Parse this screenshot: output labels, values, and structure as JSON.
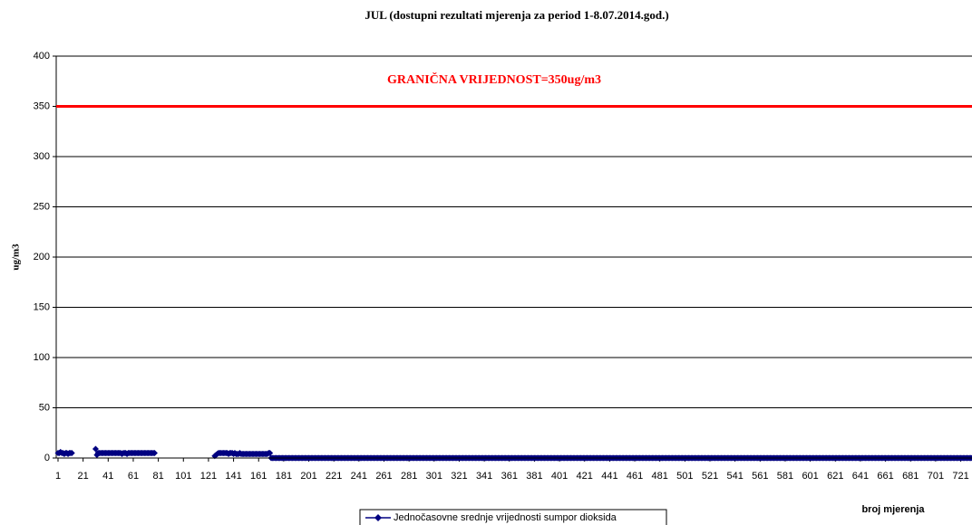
{
  "chart_data": {
    "type": "line",
    "title": "JUL (dostupni rezultati mjerenja za period 1-8.07.2014.god.)",
    "y_label": "ug/m3",
    "x_label": "broj mjerenja",
    "threshold": 350,
    "threshold_label": "GRANIČNA VRIJEDNOST=350ug/m3",
    "threshold_color": "#ff0000",
    "xlim": [
      1,
      730
    ],
    "xticks": [
      1,
      21,
      41,
      61,
      81,
      101,
      121,
      141,
      161,
      181,
      201,
      221,
      241,
      261,
      281,
      301,
      321,
      341,
      361,
      381,
      401,
      421,
      441,
      461,
      481,
      501,
      521,
      541,
      561,
      581,
      601,
      621,
      641,
      661,
      681,
      701,
      721
    ],
    "ylim": [
      0,
      400
    ],
    "yticks": [
      0,
      50,
      100,
      150,
      200,
      250,
      300,
      350,
      400
    ],
    "grid": true,
    "series": [
      {
        "name": "Jednočasovne srednje vrijednosti sumpor dioksida",
        "color": "#000080",
        "values": [
          5,
          5,
          6,
          5,
          5,
          4,
          5,
          5,
          4,
          5,
          5,
          5,
          null,
          null,
          null,
          null,
          null,
          null,
          null,
          null,
          null,
          null,
          null,
          null,
          null,
          null,
          null,
          null,
          null,
          null,
          9,
          3,
          5,
          5,
          5,
          5,
          5,
          5,
          5,
          5,
          5,
          5,
          5,
          5,
          5,
          5,
          5,
          5,
          5,
          5,
          5,
          4,
          5,
          5,
          5,
          4,
          5,
          5,
          5,
          5,
          5,
          5,
          5,
          5,
          5,
          5,
          5,
          5,
          5,
          5,
          5,
          5,
          5,
          5,
          5,
          5,
          5,
          5,
          null,
          null,
          null,
          null,
          null,
          null,
          null,
          null,
          null,
          null,
          null,
          null,
          null,
          null,
          null,
          null,
          null,
          null,
          null,
          null,
          null,
          null,
          null,
          null,
          null,
          null,
          null,
          null,
          null,
          null,
          null,
          null,
          null,
          null,
          null,
          null,
          null,
          null,
          null,
          null,
          null,
          null,
          null,
          null,
          null,
          null,
          null,
          2,
          3,
          4,
          5,
          5,
          5,
          5,
          5,
          5,
          5,
          5,
          4,
          5,
          5,
          5,
          4,
          5,
          4,
          4,
          4,
          5,
          4,
          4,
          4,
          4,
          4,
          4,
          4,
          4,
          4,
          4,
          4,
          4,
          4,
          4,
          4,
          4,
          4,
          4,
          4,
          4,
          4,
          4,
          5,
          5,
          0,
          0,
          0,
          0,
          0,
          0,
          0,
          0,
          0,
          0,
          0,
          0,
          0,
          0,
          0,
          0,
          0,
          0,
          0,
          0,
          0,
          0,
          0,
          0,
          0,
          0,
          0,
          0,
          0,
          0,
          0,
          0,
          0,
          0,
          0,
          0,
          0,
          0,
          0,
          0,
          0,
          0,
          0,
          0,
          0,
          0,
          0,
          0,
          0,
          0,
          0,
          0,
          0,
          0,
          0,
          0,
          0,
          0,
          0,
          0,
          0,
          0,
          0,
          0,
          0,
          0,
          0,
          0,
          0,
          0,
          0,
          0,
          0,
          0,
          0,
          0,
          0,
          0,
          0,
          0,
          0,
          0,
          0,
          0,
          0,
          0,
          0,
          0,
          0,
          0,
          0,
          0,
          0,
          0,
          0,
          0,
          0,
          0,
          0,
          0,
          0,
          0,
          0,
          0,
          0,
          0,
          0,
          0,
          0,
          0,
          0,
          0,
          0,
          0,
          0,
          0,
          0,
          0,
          0,
          0,
          0,
          0,
          0,
          0,
          0,
          0,
          0,
          0,
          0,
          0,
          0,
          0,
          0,
          0,
          0,
          0,
          0,
          0,
          0,
          0,
          0,
          0,
          0,
          0,
          0,
          0,
          0,
          0,
          0,
          0,
          0,
          0,
          0,
          0,
          0,
          0,
          0,
          0,
          0,
          0,
          0,
          0,
          0,
          0,
          0,
          0,
          0,
          0,
          0,
          0,
          0,
          0,
          0,
          0,
          0,
          0,
          0,
          0,
          0,
          0,
          0,
          0,
          0,
          0,
          0,
          0,
          0,
          0,
          0,
          0,
          0,
          0,
          0,
          0,
          0,
          0,
          0,
          0,
          0,
          0,
          0,
          0,
          0,
          0,
          0,
          0,
          0,
          0,
          0,
          0,
          0,
          0,
          0,
          0,
          0,
          0,
          0,
          0,
          0,
          0,
          0,
          0,
          0,
          0,
          0,
          0,
          0,
          0,
          0,
          0,
          0,
          0,
          0,
          0,
          0,
          0,
          0,
          0,
          0,
          0,
          0,
          0,
          0,
          0,
          0,
          0,
          0,
          0,
          0,
          0,
          0,
          0,
          0,
          0,
          0,
          0,
          0,
          0,
          0,
          0,
          0,
          0,
          0,
          0,
          0,
          0,
          0,
          0,
          0,
          0,
          0,
          0,
          0,
          0,
          0,
          0,
          0,
          0,
          0,
          0,
          0,
          0,
          0,
          0,
          0,
          0,
          0,
          0,
          0,
          0,
          0,
          0,
          0,
          0,
          0,
          0,
          0,
          0,
          0,
          0,
          0,
          0,
          0,
          0,
          0,
          0,
          0,
          0,
          0,
          0,
          0,
          0,
          0,
          0,
          0,
          0,
          0,
          0,
          0,
          0,
          0,
          0,
          0,
          0,
          0,
          0,
          0,
          0,
          0,
          0,
          0,
          0,
          0,
          0,
          0,
          0,
          0,
          0,
          0,
          0,
          0,
          0,
          0,
          0,
          0,
          0,
          0,
          0,
          0,
          0,
          0,
          0,
          0,
          0,
          0,
          0,
          0,
          0,
          0,
          0,
          0,
          0,
          0,
          0,
          0,
          0,
          0,
          0,
          0,
          0,
          0,
          0,
          0,
          0,
          0,
          0,
          0,
          0,
          0,
          0,
          0,
          0,
          0,
          0,
          0,
          0,
          0,
          0,
          0,
          0,
          0,
          0,
          0,
          0,
          0,
          0,
          0,
          0,
          0,
          0,
          0,
          0,
          0,
          0,
          0,
          0,
          0,
          0,
          0,
          0,
          0,
          0,
          0,
          0,
          0,
          0,
          0,
          0,
          0,
          0,
          0,
          0,
          0,
          0,
          0,
          0,
          0,
          0,
          0,
          0,
          0,
          0,
          0,
          0,
          0,
          0,
          0,
          0,
          0,
          0,
          0,
          0,
          0,
          0,
          0,
          0,
          0,
          0,
          0,
          0,
          0,
          0,
          0,
          0,
          0,
          0,
          0,
          0,
          0,
          0,
          0,
          0,
          0,
          0,
          0,
          0,
          0,
          0,
          0,
          0,
          0,
          0,
          0,
          0,
          0,
          0,
          0,
          0,
          0,
          0,
          0,
          0,
          0,
          0,
          0,
          0,
          0,
          0,
          0,
          0,
          0,
          0,
          0,
          0,
          0,
          0,
          0,
          0,
          0,
          0,
          0,
          0,
          0,
          0,
          0,
          0,
          0,
          0,
          0,
          0,
          0,
          0,
          0,
          0,
          0,
          0,
          0,
          0,
          0,
          0,
          0,
          0,
          0,
          0,
          0,
          0,
          0,
          0,
          0,
          0,
          0,
          0,
          0,
          0,
          0,
          0,
          0,
          0,
          0,
          0,
          0,
          0,
          0,
          0,
          0,
          0,
          0,
          0,
          0,
          0,
          0,
          0,
          0,
          0,
          0,
          0,
          0,
          0,
          0,
          0
        ]
      }
    ]
  }
}
